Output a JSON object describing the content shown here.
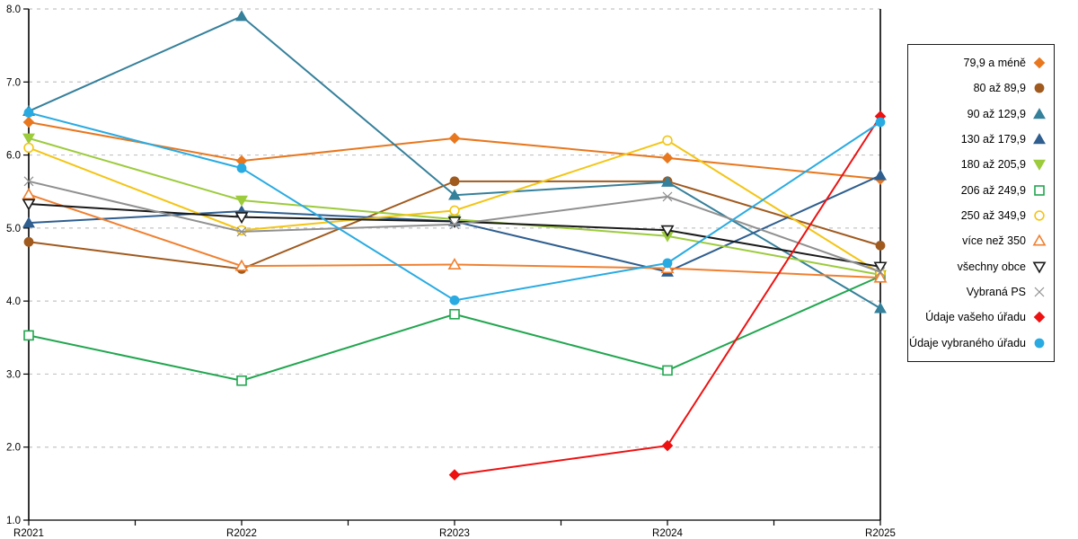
{
  "chart_data": {
    "type": "line",
    "title": "",
    "xlabel": "",
    "ylabel": "",
    "x_categories": [
      "R2021",
      "R2022",
      "R2023",
      "R2024",
      "R2025"
    ],
    "ylim": [
      1.0,
      8.0
    ],
    "yticks": [
      1,
      2,
      3,
      4,
      5,
      6,
      7,
      8
    ],
    "ytick_labels": [
      "1.0",
      "2.0",
      "3.0",
      "4.0",
      "5.0",
      "6.0",
      "7.0",
      "8.0"
    ],
    "grid": {
      "show": true,
      "color": "#c4c4c4",
      "dash": "4 5"
    },
    "axis_color": "#000000",
    "legend_position": "right",
    "series": [
      {
        "name": "79,9 a méně",
        "color": "#E8771E",
        "marker": "diamond",
        "fill": "solid",
        "values": [
          6.45,
          5.92,
          6.23,
          5.96,
          5.67
        ]
      },
      {
        "name": "80 až 89,9",
        "color": "#A05A1E",
        "marker": "circle",
        "fill": "solid",
        "values": [
          4.81,
          4.44,
          5.64,
          5.64,
          4.76
        ]
      },
      {
        "name": "90 až 129,9",
        "color": "#35809B",
        "marker": "triangle-up",
        "fill": "solid",
        "values": [
          6.6,
          7.9,
          5.45,
          5.63,
          3.9
        ]
      },
      {
        "name": "130 až 179,9",
        "color": "#2F5E8F",
        "marker": "triangle-up",
        "fill": "solid",
        "values": [
          5.07,
          5.23,
          5.09,
          4.4,
          5.72
        ]
      },
      {
        "name": "180 až 205,9",
        "color": "#9CCB3C",
        "marker": "triangle-down",
        "fill": "solid",
        "values": [
          6.23,
          5.38,
          5.12,
          4.89,
          4.36
        ]
      },
      {
        "name": "206 až 249,9",
        "color": "#21A64F",
        "marker": "square",
        "fill": "open",
        "values": [
          3.53,
          2.91,
          3.82,
          3.05,
          4.34
        ]
      },
      {
        "name": "250 až 349,9",
        "color": "#F3C515",
        "marker": "circle",
        "fill": "open",
        "values": [
          6.1,
          4.97,
          5.24,
          6.2,
          4.38
        ]
      },
      {
        "name": "více než 350",
        "color": "#F08030",
        "marker": "triangle-up",
        "fill": "open",
        "values": [
          5.46,
          4.48,
          4.5,
          4.45,
          4.32
        ]
      },
      {
        "name": "všechny obce",
        "color": "#1A1A1A",
        "marker": "triangle-down",
        "fill": "open",
        "values": [
          5.33,
          5.15,
          5.09,
          4.97,
          4.47
        ]
      },
      {
        "name": "Vybraná PS",
        "color": "#909090",
        "marker": "x",
        "fill": "stroke",
        "values": [
          5.64,
          4.95,
          5.05,
          5.43,
          4.4
        ]
      },
      {
        "name": "Údaje vašeho úřadu",
        "color": "#EE1111",
        "marker": "diamond",
        "fill": "solid",
        "values": [
          null,
          null,
          1.62,
          2.02,
          6.53
        ]
      },
      {
        "name": "Údaje vybraného úřadu",
        "color": "#29ABE2",
        "marker": "circle",
        "fill": "solid",
        "values": [
          6.58,
          5.82,
          4.01,
          4.52,
          6.45
        ]
      }
    ]
  }
}
